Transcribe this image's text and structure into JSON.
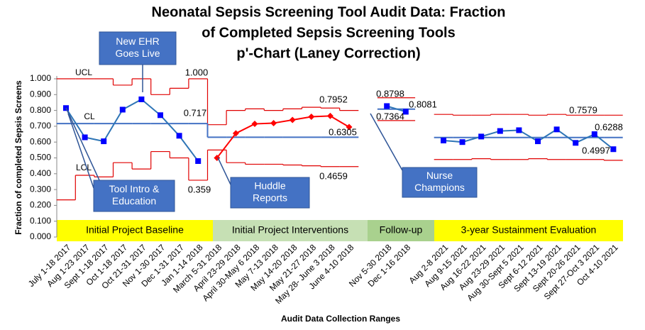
{
  "chart_data": {
    "type": "control",
    "title": [
      "Neonatal Sepsis Screening Tool Audit Data: Fraction",
      "of Completed Sepsis Screening Tools",
      "p'-Chart (Laney Correction)"
    ],
    "x_label": "Audit Data Collection Ranges",
    "y_label": "Fraction of completed Sepsis Screens",
    "categories": [
      "July 1-18 2017",
      "Aug 1-23 2017",
      "Sept 1-18 2017",
      "Oct 1-18 2017",
      "Oct 21-31 2017",
      "Nov 1-30 2017",
      "Dec 1-31 2017",
      "Jan 1-14 2018",
      "March 5-31 2018",
      "April 23-29 2018",
      "April 30-May 6 2018",
      "May 7-13 2018",
      "May 14-20 2018",
      "May 21-27 2018",
      "May 28- June 3 2018",
      "June 4-10 2018",
      null,
      "Nov 5-30 2018",
      "Dec 1-16 2018",
      null,
      "Aug 2-8 2021",
      "Aug 9-15 2021",
      "Aug 16-22 2021",
      "Aug 23-29 2021",
      "Aug 30-Sept 5 2021",
      "Sept 6-12 2021",
      "Sept 13-19 2021",
      "Sept 20-26 2021",
      "Sept 27-Oct 3 2021",
      "Oct 4-10 2021"
    ],
    "series": [
      {
        "color": "#0000ff",
        "line": "#2e75b6",
        "marker": "square",
        "values": [
          0.815,
          0.63,
          0.605,
          0.805,
          0.87,
          0.77,
          0.64,
          0.48,
          null,
          null,
          null,
          null,
          null,
          null,
          null,
          null,
          null,
          null,
          null,
          null,
          null,
          null,
          null,
          null,
          null,
          null,
          null,
          null,
          null,
          null
        ]
      },
      {
        "color": "#ff0000",
        "line": "#ff0000",
        "marker": "diamond",
        "values": [
          null,
          null,
          null,
          null,
          null,
          null,
          null,
          null,
          0.5,
          0.655,
          0.715,
          0.72,
          0.74,
          0.76,
          0.765,
          0.695,
          null,
          null,
          null,
          null,
          null,
          null,
          null,
          null,
          null,
          null,
          null,
          null,
          null,
          null
        ]
      },
      {
        "color": "#0000ff",
        "line": "#2e75b6",
        "marker": "square",
        "values": [
          null,
          null,
          null,
          null,
          null,
          null,
          null,
          null,
          null,
          null,
          null,
          null,
          null,
          null,
          null,
          null,
          null,
          0.8275,
          0.7917,
          null,
          null,
          null,
          null,
          null,
          null,
          null,
          null,
          null,
          null,
          null
        ]
      },
      {
        "color": "#0000ff",
        "line": "#2e75b6",
        "marker": "square",
        "values": [
          null,
          null,
          null,
          null,
          null,
          null,
          null,
          null,
          null,
          null,
          null,
          null,
          null,
          null,
          null,
          null,
          null,
          null,
          null,
          null,
          0.61,
          0.6,
          0.635,
          0.67,
          0.675,
          0.605,
          0.68,
          0.595,
          0.65,
          0.555
        ]
      }
    ],
    "limits": [
      {
        "name": "UCL",
        "color": "#e00000",
        "values": [
          1.0,
          1.0,
          1.0,
          0.96,
          1.0,
          0.9,
          0.94,
          1.0,
          0.71,
          0.8,
          0.81,
          0.8,
          0.81,
          0.82,
          0.815,
          0.8,
          null,
          0.88,
          0.88,
          null,
          0.775,
          0.77,
          0.77,
          0.775,
          0.775,
          0.77,
          0.775,
          0.77,
          0.77,
          0.77
        ]
      },
      {
        "name": "CL",
        "color": "#4472c4",
        "values": [
          0.717,
          0.717,
          0.717,
          0.717,
          0.717,
          0.717,
          0.717,
          0.717,
          0.6305,
          0.6305,
          0.6305,
          0.6305,
          0.6305,
          0.6305,
          0.6305,
          0.6305,
          null,
          0.8081,
          0.8081,
          null,
          0.6288,
          0.6288,
          0.6288,
          0.6288,
          0.6288,
          0.6288,
          0.6288,
          0.6288,
          0.6288,
          0.6288
        ]
      },
      {
        "name": "LCL",
        "color": "#e00000",
        "values": [
          0.235,
          0.39,
          0.38,
          0.47,
          0.43,
          0.54,
          0.5,
          0.359,
          0.55,
          0.47,
          0.46,
          0.46,
          0.455,
          0.45,
          0.445,
          0.445,
          null,
          0.736,
          0.736,
          null,
          0.49,
          0.49,
          0.495,
          0.49,
          0.49,
          0.495,
          0.49,
          0.49,
          0.49,
          0.485
        ]
      }
    ],
    "ylim": [
      0,
      1
    ],
    "yticks": [
      {
        "value": 0,
        "label": "0.000"
      },
      {
        "value": 0.1,
        "label": "0.100"
      },
      {
        "value": 0.2,
        "label": "0.200"
      },
      {
        "value": 0.3,
        "label": "0.300"
      },
      {
        "value": 0.4,
        "label": "0.400"
      },
      {
        "value": 0.5,
        "label": "0.500"
      },
      {
        "value": 0.6,
        "label": "0.600"
      },
      {
        "value": 0.7,
        "label": "0.700"
      },
      {
        "value": 0.8,
        "label": "0.800"
      },
      {
        "value": 0.9,
        "label": "0.900"
      },
      {
        "value": 1,
        "label": "1.000"
      }
    ],
    "phases": [
      {
        "label": "Initial Project Baseline",
        "color": "#ffff00"
      },
      {
        "label": "Initial Project Interventions",
        "color": "#c6e0b4"
      },
      {
        "label": "Follow-up",
        "color": "#a9d18e"
      },
      {
        "label": "3-year Sustainment Evaluation",
        "color": "#ffff00"
      }
    ],
    "annotations": [
      "1.000",
      "0.717",
      "0.359",
      "0.7952",
      "0.6305",
      "0.4659",
      "0.8798",
      "0.7364",
      "0.8081",
      "0.7579",
      "0.6288",
      "0.4997"
    ],
    "callouts": [
      [
        "New EHR",
        "Goes Live"
      ],
      [
        "Tool Intro &",
        "Education"
      ],
      [
        "Huddle",
        "Reports"
      ],
      [
        "Nurse",
        "Champions"
      ]
    ]
  }
}
